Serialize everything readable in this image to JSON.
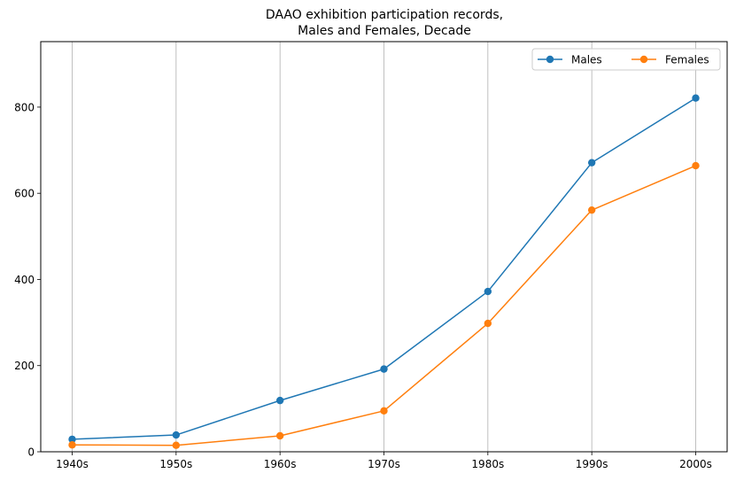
{
  "chart_data": {
    "type": "line",
    "title_lines": [
      "DAAO exhibition participation records,",
      "Males and Females, Decade"
    ],
    "categories": [
      "1940s",
      "1950s",
      "1960s",
      "1970s",
      "1980s",
      "1990s",
      "2000s"
    ],
    "series": [
      {
        "name": "Males",
        "color": "#1f77b4",
        "values": [
          29,
          39,
          119,
          192,
          372,
          671,
          821
        ]
      },
      {
        "name": "Females",
        "color": "#ff7f0e",
        "values": [
          16,
          15,
          37,
          95,
          298,
          561,
          664
        ]
      }
    ],
    "y_ticks": [
      0,
      200,
      400,
      600,
      800
    ],
    "ylim": [
      0,
      952
    ],
    "xlabel": "",
    "ylabel": "",
    "grid": "vertical",
    "legend_position": "top-right",
    "legend_columns": 2
  }
}
